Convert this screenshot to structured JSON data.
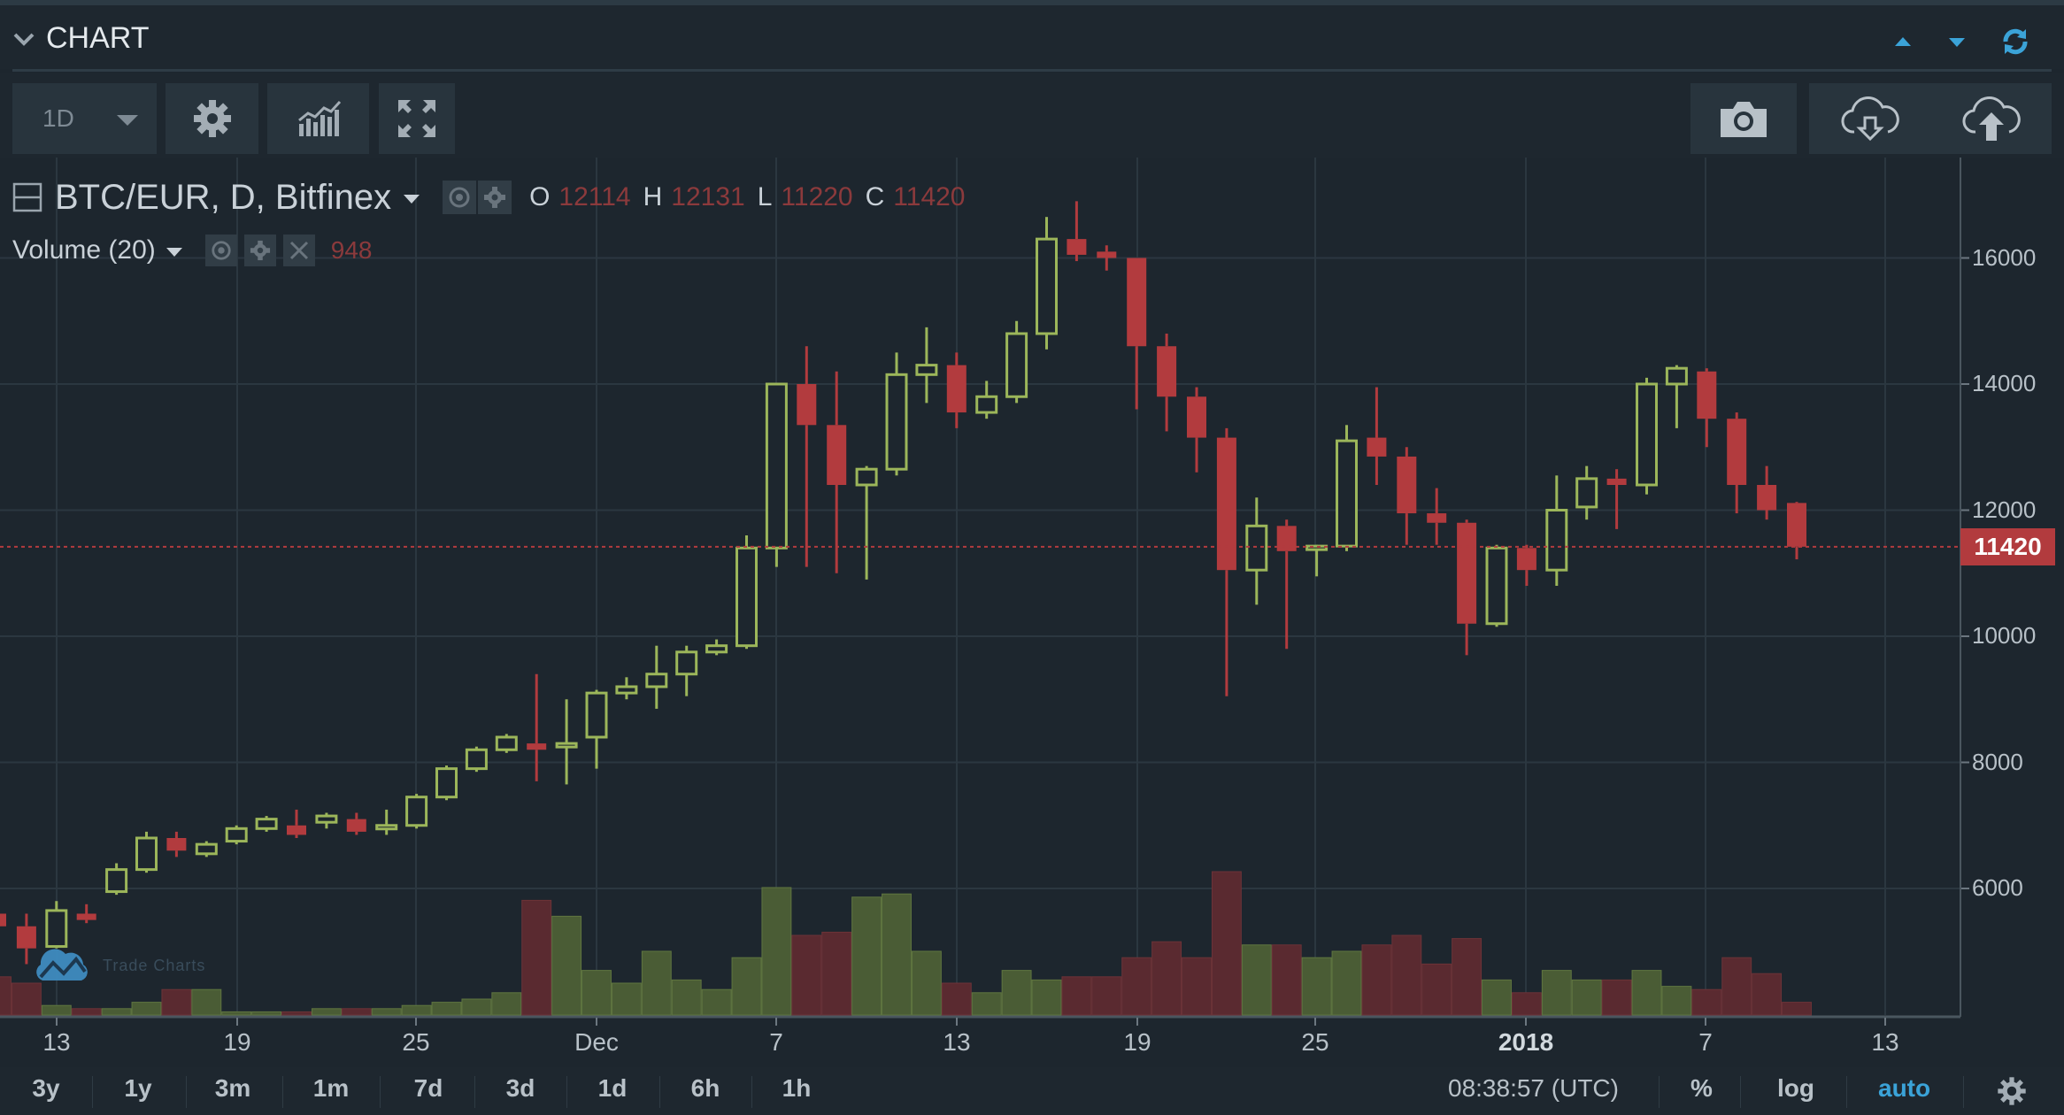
{
  "header": {
    "title": "CHART",
    "icons": [
      "collapse-chevron-icon",
      "move-up-icon",
      "move-down-icon",
      "refresh-icon"
    ],
    "accent_color": "#3ba3d8"
  },
  "toolbar": {
    "interval": "1D",
    "buttons": [
      "settings",
      "indicators",
      "fullscreen",
      "snapshot",
      "load-layout",
      "save-layout"
    ]
  },
  "legend": {
    "symbol": "BTC/EUR, D, Bitfinex",
    "ohlc": {
      "o_label": "O",
      "o": "12114",
      "h_label": "H",
      "h": "12131",
      "l_label": "L",
      "l": "11220",
      "c_label": "C",
      "c": "11420"
    },
    "volume_name": "Volume (20)",
    "volume_value": "948"
  },
  "price_axis": {
    "ticks": [
      "16000",
      "14000",
      "12000",
      "10000",
      "8000",
      "6000"
    ],
    "last_price": "11420",
    "last_price_color": "#b23b3e"
  },
  "time_axis": {
    "ticks": [
      "13",
      "19",
      "25",
      "Dec",
      "7",
      "13",
      "19",
      "25",
      "2018",
      "7",
      "13"
    ]
  },
  "bottom_bar": {
    "ranges": [
      "3y",
      "1y",
      "3m",
      "1m",
      "7d",
      "3d",
      "1d",
      "6h",
      "1h"
    ],
    "clock": "08:38:57 (UTC)",
    "percent": "%",
    "log": "log",
    "auto": "auto"
  },
  "watermark": {
    "text": "Trade Charts"
  },
  "colors": {
    "up": "#9cb65a",
    "down": "#b23b3e",
    "vol_up": "#4a5c35",
    "vol_down": "#5a2a30",
    "background": "#1d262e"
  },
  "chart_data": {
    "type": "candlestick",
    "title": "BTC/EUR, D, Bitfinex",
    "xlabel": "",
    "ylabel": "EUR",
    "ylim": [
      4000,
      17000
    ],
    "grid": true,
    "legend_position": "top-left",
    "x": [
      "Nov 11",
      "Nov 12",
      "Nov 13",
      "Nov 14",
      "Nov 15",
      "Nov 16",
      "Nov 17",
      "Nov 18",
      "Nov 19",
      "Nov 20",
      "Nov 21",
      "Nov 22",
      "Nov 23",
      "Nov 24",
      "Nov 25",
      "Nov 26",
      "Nov 27",
      "Nov 28",
      "Nov 29",
      "Nov 30",
      "Dec 1",
      "Dec 2",
      "Dec 3",
      "Dec 4",
      "Dec 5",
      "Dec 6",
      "Dec 7",
      "Dec 8",
      "Dec 9",
      "Dec 10",
      "Dec 11",
      "Dec 12",
      "Dec 13",
      "Dec 14",
      "Dec 15",
      "Dec 16",
      "Dec 17",
      "Dec 18",
      "Dec 19",
      "Dec 20",
      "Dec 21",
      "Dec 22",
      "Dec 23",
      "Dec 24",
      "Dec 25",
      "Dec 26",
      "Dec 27",
      "Dec 28",
      "Dec 29",
      "Dec 30",
      "Dec 31",
      "Jan 1",
      "Jan 2",
      "Jan 3",
      "Jan 4",
      "Jan 5",
      "Jan 6",
      "Jan 7",
      "Jan 8",
      "Jan 9",
      "Jan 10"
    ],
    "open": [
      5600,
      5400,
      5080,
      5600,
      5950,
      6300,
      6800,
      6550,
      6750,
      6950,
      7000,
      7050,
      7100,
      6950,
      7000,
      7450,
      7900,
      8200,
      8300,
      8250,
      8400,
      9100,
      9200,
      9400,
      9750,
      9850,
      11400,
      14000,
      13350,
      12400,
      12650,
      14150,
      14300,
      13550,
      13800,
      14800,
      16300,
      16100,
      16000,
      14600,
      13800,
      13150,
      11050,
      11750,
      11380,
      11430,
      13150,
      12850,
      11950,
      11800,
      10200,
      11400,
      11050,
      12050,
      12500,
      12400,
      14000,
      14200,
      13450,
      12400,
      12114
    ],
    "high": [
      5800,
      5600,
      5800,
      5750,
      6400,
      6900,
      6900,
      6750,
      7000,
      7150,
      7250,
      7200,
      7200,
      7250,
      7500,
      7950,
      8250,
      8450,
      9400,
      9000,
      9150,
      9350,
      9850,
      9850,
      9950,
      11600,
      14000,
      14600,
      14200,
      12700,
      14500,
      14900,
      14500,
      14050,
      15000,
      16650,
      16900,
      16200,
      16000,
      14800,
      13950,
      13300,
      12200,
      11850,
      11450,
      13350,
      13950,
      13000,
      12350,
      11850,
      11450,
      11450,
      12550,
      12700,
      12650,
      14100,
      14300,
      14250,
      13550,
      12700,
      12131
    ],
    "low": [
      5350,
      4800,
      5050,
      5450,
      5900,
      6250,
      6500,
      6500,
      6700,
      6900,
      6800,
      6950,
      6850,
      6850,
      6950,
      7400,
      7850,
      8150,
      7700,
      7650,
      7900,
      9000,
      8850,
      9050,
      9700,
      9800,
      11100,
      11100,
      11000,
      10900,
      12550,
      13700,
      13300,
      13450,
      13700,
      14550,
      15950,
      15800,
      13600,
      13250,
      12600,
      9050,
      10500,
      9800,
      10950,
      11350,
      12400,
      11450,
      11450,
      9700,
      10150,
      10800,
      10800,
      11850,
      11700,
      12250,
      13300,
      13000,
      11950,
      11850,
      11220
    ],
    "close": [
      5400,
      5050,
      5650,
      5500,
      6300,
      6800,
      6600,
      6700,
      6950,
      7100,
      6850,
      7150,
      6900,
      7000,
      7450,
      7900,
      8200,
      8400,
      8200,
      8300,
      9100,
      9200,
      9400,
      9750,
      9850,
      11400,
      14000,
      13350,
      12400,
      12650,
      14150,
      14300,
      13550,
      13800,
      14800,
      16300,
      16050,
      16000,
      14600,
      13800,
      13150,
      11050,
      11750,
      11350,
      11430,
      13100,
      12850,
      11950,
      11800,
      10200,
      11400,
      11050,
      12000,
      12500,
      12400,
      14000,
      14250,
      13450,
      12400,
      12000,
      11420
    ],
    "volume_relative": [
      12,
      10,
      3,
      2,
      2,
      4,
      8,
      8,
      1,
      1,
      1,
      2,
      2,
      2,
      3,
      4,
      5,
      7,
      36,
      31,
      14,
      10,
      20,
      11,
      8,
      18,
      40,
      25,
      26,
      37,
      38,
      20,
      10,
      7,
      14,
      11,
      12,
      12,
      18,
      23,
      18,
      45,
      22,
      22,
      18,
      20,
      22,
      25,
      16,
      24,
      11,
      7,
      14,
      11,
      11,
      14,
      9,
      8,
      18,
      13,
      4
    ],
    "volume_last": 948
  }
}
